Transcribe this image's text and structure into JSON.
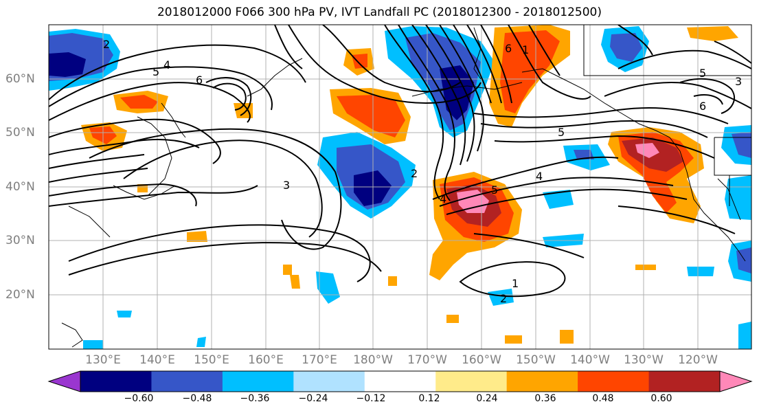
{
  "title": "2018012000 F066 300 hPa PV, IVT Landfall PC (2018012300 - 2018012500)",
  "lon_labels": [
    "130°E",
    "140°E",
    "150°E",
    "160°E",
    "170°E",
    "180°W",
    "170°W",
    "160°W",
    "150°W",
    "140°W",
    "130°W",
    "120°W"
  ],
  "lat_labels": [
    "60°N",
    "50°N",
    "40°N",
    "30°N",
    "20°N"
  ],
  "colorbar": {
    "colors": [
      "#9a36d0",
      "#000080",
      "#3656c8",
      "#00bfff",
      "#b0e2ff",
      "#ffffff",
      "#ffeb8a",
      "#ffa500",
      "#ff4500",
      "#b22222",
      "#ff88b8"
    ],
    "tick_labels": [
      "−0.60",
      "−0.48",
      "−0.36",
      "−0.24",
      "−0.12",
      "0.12",
      "0.24",
      "0.36",
      "0.48",
      "0.60"
    ]
  },
  "contour_labels": [
    "2",
    "4",
    "5",
    "6",
    "3",
    "5",
    "4",
    "5",
    "1",
    "2",
    "1",
    "6",
    "5",
    "6",
    "2",
    "3",
    "4"
  ],
  "colors": {
    "coast": "#000000",
    "grid": "#b0b0b0",
    "axis_text": "#7f7f7f"
  }
}
